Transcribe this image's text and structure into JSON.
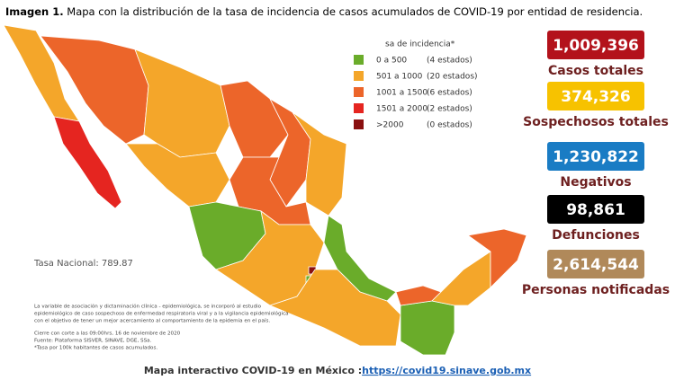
{
  "title": {
    "label": "Imagen 1.",
    "text": "Mapa con la distribución de la tasa de incidencia de casos acumulados de COVID-19 por entidad de residencia."
  },
  "legend": {
    "title": "sa de incidencia*",
    "items": [
      {
        "range": "0 a 500",
        "count": "(4 estados)",
        "color": "#6aac2a"
      },
      {
        "range": "501 a 1000",
        "count": "(20 estados)",
        "color": "#f4a62a"
      },
      {
        "range": "1001 a 1500",
        "count": "(6 estados)",
        "color": "#ec652a"
      },
      {
        "range": "1501 a 2000",
        "count": "(2 estados)",
        "color": "#e52520"
      },
      {
        "range": ">2000",
        "count": "(0 estados)",
        "color": "#8a1010"
      }
    ]
  },
  "national_rate": "Tasa Nacional: 789.87",
  "notes": [
    "La variable de asociación y dictaminación clínica - epidemiológica, se incorporó al estudio",
    "epidemiológico de caso sospechoso de enfermedad respiratoria viral y a la vigilancia epidemiológica",
    "con el objetivo de tener un mejor acercamiento al comportamiento de la epidemia en el país.",
    "Cierre con corte a las 09:00hrs, 16 de noviembre de 2020",
    "Fuente: Plataforma SISVER, SINAVE, DGE, SSa.",
    "*Tasa por 100k habitantes de casos acumulados."
  ],
  "stats": [
    {
      "value": "1,009,396",
      "label": "Casos totales",
      "color": "#b3121b"
    },
    {
      "value": "374,326",
      "label": "Sospechosos totales",
      "color": "#f7c200"
    },
    {
      "value": "1,230,822",
      "label": "Negativos",
      "color": "#1a7cc4"
    },
    {
      "value": "98,861",
      "label": "Defunciones",
      "color": "#000000"
    },
    {
      "value": "2,614,544",
      "label": "Personas notificadas",
      "color": "#b0895a"
    }
  ],
  "footer": {
    "text": "Mapa interactivo COVID-19 en México :",
    "link": "https://covid19.sinave.gob.mx"
  }
}
